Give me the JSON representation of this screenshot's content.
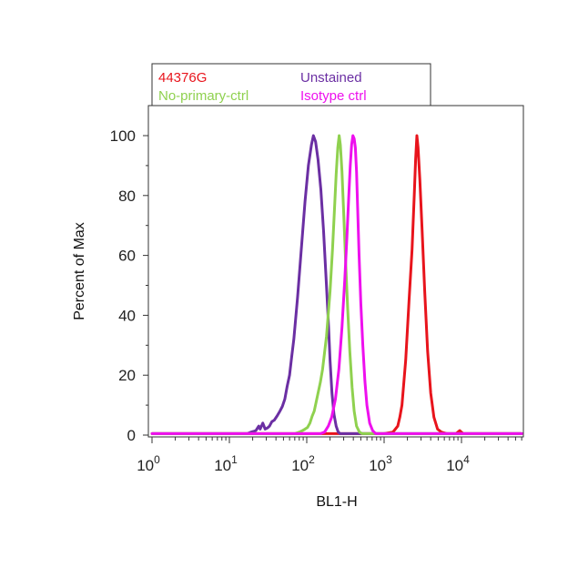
{
  "chart_data": {
    "type": "line",
    "title": "",
    "xlabel": "BL1-H",
    "ylabel": "Percent of Max",
    "x_scale": "log",
    "xlim": [
      1,
      60000
    ],
    "ylim": [
      0,
      110
    ],
    "x_ticks": [
      {
        "base": "10",
        "exp": "0",
        "value": 1
      },
      {
        "base": "10",
        "exp": "1",
        "value": 10
      },
      {
        "base": "10",
        "exp": "2",
        "value": 100
      },
      {
        "base": "10",
        "exp": "3",
        "value": 1000
      },
      {
        "base": "10",
        "exp": "4",
        "value": 10000
      }
    ],
    "y_ticks": [
      "0",
      "20",
      "40",
      "60",
      "80",
      "100"
    ],
    "grid": false,
    "legend_position": "top",
    "series": [
      {
        "name": "44376G",
        "color": "#e8141c",
        "points": [
          [
            1,
            0.5
          ],
          [
            1000,
            0.5
          ],
          [
            1300,
            1
          ],
          [
            1500,
            3
          ],
          [
            1700,
            10
          ],
          [
            1900,
            25
          ],
          [
            2100,
            45
          ],
          [
            2300,
            62
          ],
          [
            2450,
            80
          ],
          [
            2550,
            92
          ],
          [
            2650,
            100
          ],
          [
            2750,
            96
          ],
          [
            2900,
            85
          ],
          [
            3100,
            68
          ],
          [
            3350,
            48
          ],
          [
            3650,
            28
          ],
          [
            4000,
            14
          ],
          [
            4400,
            6
          ],
          [
            4900,
            2
          ],
          [
            5500,
            1
          ],
          [
            6500,
            0.5
          ],
          [
            8500,
            0.5
          ],
          [
            9500,
            1.5
          ],
          [
            10500,
            0.5
          ],
          [
            60000,
            0.5
          ]
        ]
      },
      {
        "name": "Unstained",
        "color": "#6b2fa3",
        "points": [
          [
            1,
            0.5
          ],
          [
            17,
            0.5
          ],
          [
            19,
            1
          ],
          [
            22,
            1.5
          ],
          [
            24,
            3
          ],
          [
            25,
            2
          ],
          [
            27,
            4
          ],
          [
            29,
            2
          ],
          [
            33,
            3
          ],
          [
            38,
            5
          ],
          [
            45,
            8
          ],
          [
            52,
            12
          ],
          [
            60,
            20
          ],
          [
            68,
            32
          ],
          [
            76,
            46
          ],
          [
            85,
            62
          ],
          [
            95,
            78
          ],
          [
            105,
            90
          ],
          [
            115,
            97
          ],
          [
            122,
            100
          ],
          [
            130,
            98
          ],
          [
            140,
            92
          ],
          [
            152,
            82
          ],
          [
            165,
            68
          ],
          [
            178,
            52
          ],
          [
            190,
            38
          ],
          [
            200,
            25
          ],
          [
            212,
            14
          ],
          [
            225,
            7
          ],
          [
            240,
            3
          ],
          [
            255,
            1
          ],
          [
            270,
            0.5
          ],
          [
            60000,
            0.5
          ]
        ]
      },
      {
        "name": "No-primary-ctrl",
        "color": "#8fd14f",
        "points": [
          [
            1,
            0.5
          ],
          [
            70,
            0.5
          ],
          [
            80,
            1
          ],
          [
            95,
            2
          ],
          [
            110,
            4
          ],
          [
            125,
            8
          ],
          [
            140,
            14
          ],
          [
            160,
            22
          ],
          [
            180,
            33
          ],
          [
            200,
            48
          ],
          [
            215,
            62
          ],
          [
            228,
            75
          ],
          [
            240,
            87
          ],
          [
            252,
            96
          ],
          [
            262,
            100
          ],
          [
            272,
            97
          ],
          [
            285,
            88
          ],
          [
            300,
            74
          ],
          [
            318,
            58
          ],
          [
            338,
            42
          ],
          [
            360,
            28
          ],
          [
            385,
            16
          ],
          [
            410,
            8
          ],
          [
            440,
            3
          ],
          [
            480,
            1
          ],
          [
            520,
            0.5
          ],
          [
            60000,
            0.5
          ]
        ]
      },
      {
        "name": "Isotype ctrl",
        "color": "#ee10ee",
        "points": [
          [
            1,
            0.5
          ],
          [
            150,
            0.5
          ],
          [
            170,
            1
          ],
          [
            190,
            3
          ],
          [
            210,
            6
          ],
          [
            235,
            12
          ],
          [
            260,
            22
          ],
          [
            285,
            36
          ],
          [
            310,
            52
          ],
          [
            330,
            66
          ],
          [
            350,
            80
          ],
          [
            365,
            90
          ],
          [
            380,
            97
          ],
          [
            395,
            100
          ],
          [
            410,
            99
          ],
          [
            425,
            96
          ],
          [
            440,
            88
          ],
          [
            455,
            76
          ],
          [
            475,
            60
          ],
          [
            500,
            44
          ],
          [
            530,
            30
          ],
          [
            565,
            18
          ],
          [
            600,
            10
          ],
          [
            650,
            4
          ],
          [
            710,
            1.5
          ],
          [
            780,
            0.5
          ],
          [
            60000,
            0.5
          ]
        ]
      }
    ]
  }
}
